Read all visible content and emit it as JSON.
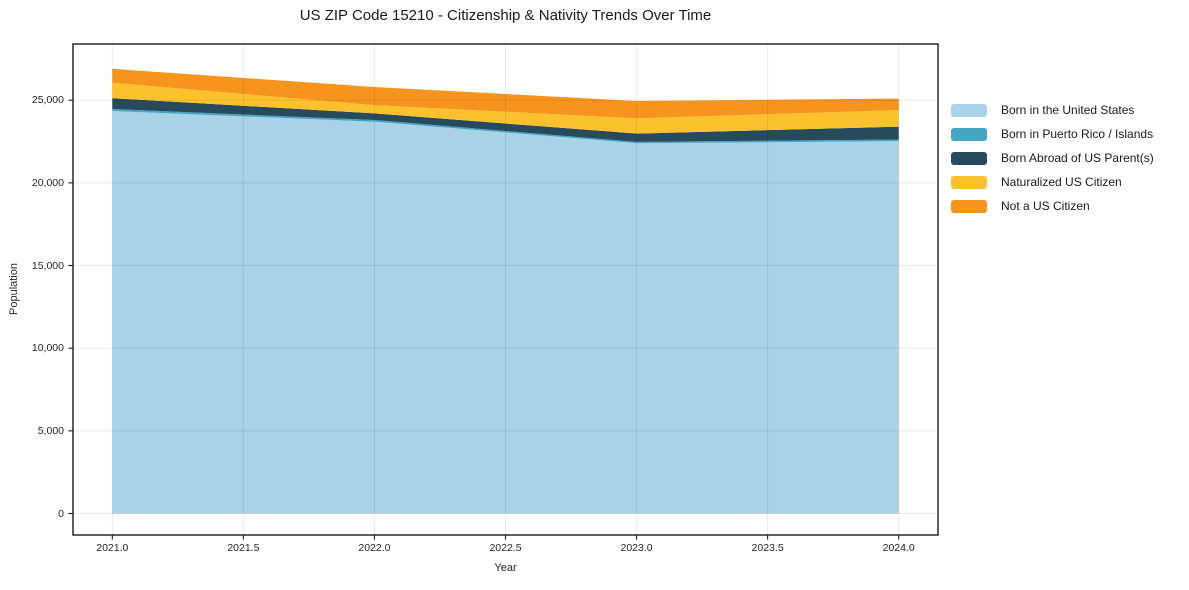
{
  "chart_data": {
    "type": "area",
    "stacked": true,
    "title": "US ZIP Code 15210 - Citizenship & Nativity Trends Over Time",
    "xlabel": "Year",
    "ylabel": "Population",
    "x": [
      2021,
      2022,
      2023,
      2024
    ],
    "series": [
      {
        "name": "Born in the United States",
        "color": "#a8d3e8",
        "values": [
          24350,
          23700,
          22400,
          22520
        ]
      },
      {
        "name": "Born in Puerto Rico / Islands",
        "color": "#44a5c5",
        "values": [
          120,
          100,
          80,
          100
        ]
      },
      {
        "name": "Born Abroad of US Parent(s)",
        "color": "#274a5d",
        "values": [
          650,
          400,
          500,
          780
        ]
      },
      {
        "name": "Naturalized US Citizen",
        "color": "#fcc22e",
        "values": [
          940,
          500,
          920,
          1000
        ]
      },
      {
        "name": "Not a US Citizen",
        "color": "#f7941e",
        "values": [
          840,
          1100,
          1050,
          700
        ]
      }
    ],
    "totals": [
      26900,
      25800,
      24950,
      25100
    ],
    "x_ticks": [
      2021.0,
      2021.5,
      2022.0,
      2022.5,
      2023.0,
      2023.5,
      2024.0
    ],
    "x_tick_labels": [
      "2021.0",
      "2021.5",
      "2022.0",
      "2022.5",
      "2023.0",
      "2023.5",
      "2024.0"
    ],
    "y_ticks": [
      0,
      5000,
      10000,
      15000,
      20000,
      25000
    ],
    "y_tick_labels": [
      "0",
      "5,000",
      "10,000",
      "15,000",
      "20,000",
      "25,000"
    ],
    "xlim": [
      2020.85,
      2024.15
    ],
    "ylim": [
      -1300,
      28400
    ],
    "grid": true,
    "legend_position": "right of plot, no frame"
  },
  "colors": {
    "background": "#ffffff",
    "spine": "#1a1a1a",
    "grid": "rgba(0,0,0,0.08)",
    "tick_text": "#262626"
  }
}
